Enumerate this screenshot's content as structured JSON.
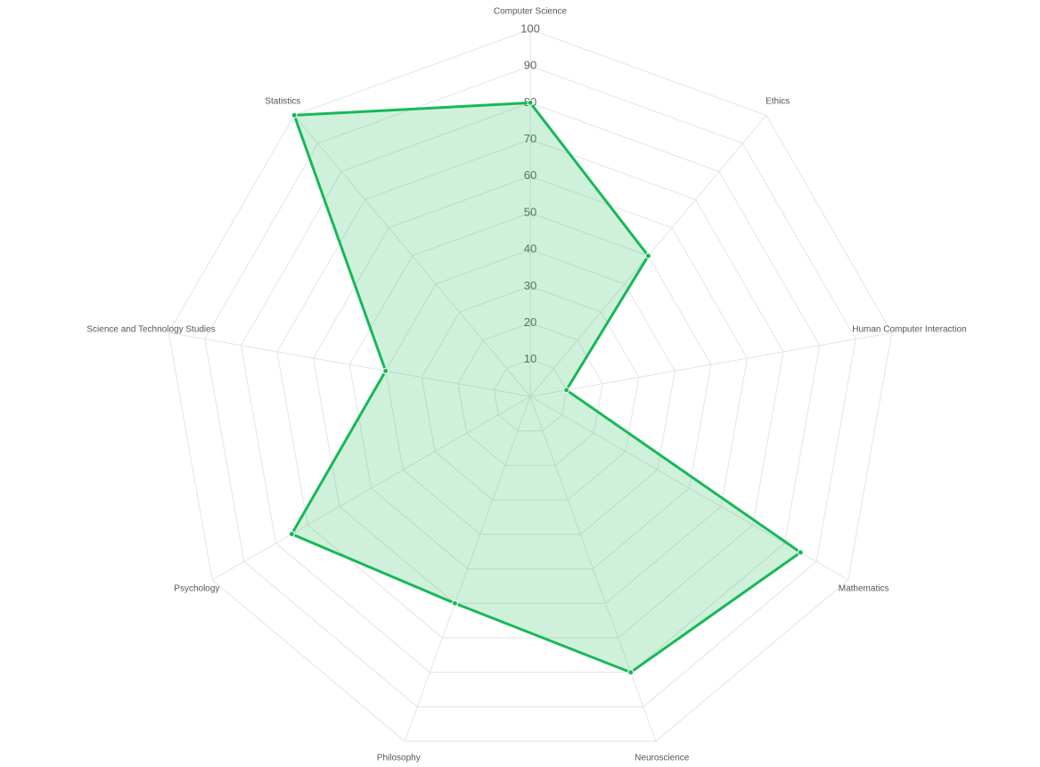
{
  "chart_data": {
    "type": "radar",
    "title": "",
    "axes": [
      "Computer Science",
      "Ethics",
      "Human Computer Interaction",
      "Mathematics",
      "Neuroscience",
      "Philosophy",
      "Psychology",
      "Science and Technology Studies",
      "Statistics"
    ],
    "r_ticks": [
      10,
      20,
      30,
      40,
      50,
      60,
      70,
      80,
      90,
      100
    ],
    "rlim": [
      0,
      100
    ],
    "grid": true,
    "legend": "none",
    "series": [
      {
        "values": [
          80,
          50,
          10,
          85,
          80,
          60,
          75,
          40,
          100
        ],
        "color": "#16b957",
        "fill": "rgba(16, 185, 80, 0.2)"
      }
    ]
  }
}
